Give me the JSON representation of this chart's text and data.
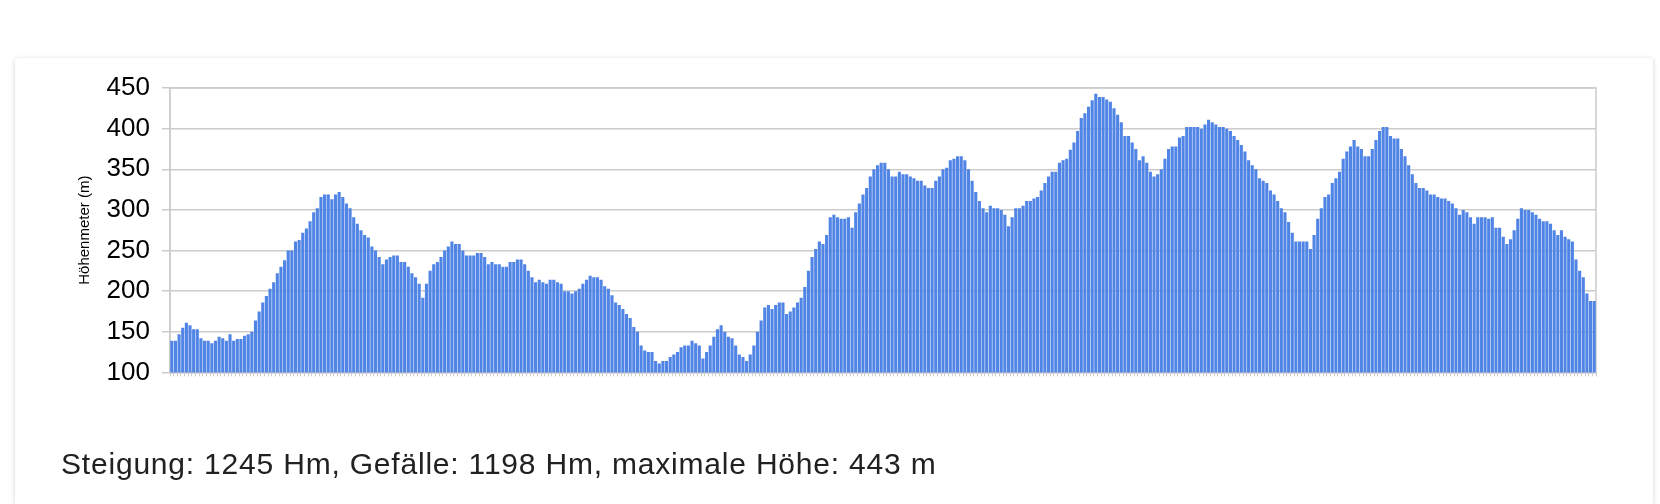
{
  "chart_data": {
    "type": "bar",
    "ylabel": "Höhenmeter (m)",
    "color": "#5185e5",
    "ylim": [
      100,
      450
    ],
    "yticks": [
      100,
      150,
      200,
      250,
      300,
      350,
      400,
      450
    ],
    "grid": "y",
    "tick_labels": "y",
    "annotations": [
      "Steigung: 1245 Hm, Gefälle: 1198 Hm, maximale Höhe: 443 m"
    ],
    "categories": [
      null,
      null,
      null,
      null,
      null,
      null,
      null,
      null,
      null,
      null,
      null,
      null,
      null,
      null,
      null,
      null,
      null,
      null,
      null,
      null,
      null,
      null,
      null,
      null,
      null,
      null,
      null,
      null,
      null,
      null,
      null,
      null,
      null,
      null,
      null,
      null,
      null,
      null,
      null,
      null,
      null,
      null,
      null,
      null,
      null,
      null,
      null,
      null,
      null,
      null,
      null,
      null,
      null,
      null,
      null,
      null,
      null,
      null,
      null,
      null,
      null,
      null,
      null,
      null,
      null,
      null,
      null,
      null,
      null,
      null,
      null,
      null,
      null,
      null,
      null,
      null,
      null,
      null,
      null,
      null,
      null,
      null,
      null,
      null,
      null,
      null,
      null,
      null,
      null,
      null,
      null,
      null,
      null,
      null,
      null,
      null,
      null,
      null,
      null,
      null,
      null,
      null,
      null,
      null,
      null,
      null,
      null,
      null,
      null,
      null,
      null,
      null,
      null,
      null,
      null,
      null,
      null,
      null,
      null,
      null,
      null,
      null,
      null,
      null,
      null,
      null,
      null,
      null,
      null,
      null,
      null,
      null,
      null,
      null,
      null,
      null,
      null,
      null,
      null,
      null,
      null,
      null,
      null,
      null,
      null,
      null,
      null,
      null,
      null,
      null,
      null,
      null,
      null,
      null,
      null,
      null,
      null,
      null,
      null,
      null,
      null,
      null,
      null,
      null,
      null,
      null,
      null,
      null,
      null,
      null,
      null,
      null,
      null,
      null,
      null,
      null,
      null,
      null,
      null,
      null,
      null,
      null,
      null,
      null,
      null,
      null,
      null,
      null,
      null,
      null,
      null,
      null,
      null,
      null,
      null,
      null,
      null,
      null,
      null,
      null,
      null,
      null,
      null,
      null,
      null,
      null,
      null,
      null,
      null,
      null,
      null,
      null,
      null,
      null,
      null,
      null,
      null,
      null,
      null,
      null,
      null,
      null,
      null,
      null,
      null,
      null,
      null,
      null,
      null,
      null,
      null,
      null,
      null,
      null,
      null,
      null,
      null,
      null,
      null,
      null,
      null,
      null,
      null,
      null,
      null,
      null,
      null,
      null,
      null,
      null,
      null,
      null,
      null,
      null,
      null,
      null,
      null,
      null,
      null,
      null,
      null,
      null,
      null,
      null,
      null,
      null,
      null,
      null,
      null,
      null,
      null,
      null,
      null,
      null,
      null,
      null,
      null,
      null,
      null,
      null,
      null,
      null,
      null,
      null,
      null,
      null,
      null,
      null,
      null,
      null,
      null,
      null,
      null,
      null,
      null,
      null,
      null,
      null,
      null,
      null,
      null,
      null,
      null,
      null,
      null,
      null,
      null,
      null,
      null,
      null,
      null,
      null,
      null,
      null,
      null,
      null,
      null,
      null,
      null,
      null,
      null,
      null,
      null,
      null,
      null,
      null,
      null,
      null,
      null,
      null,
      null,
      null,
      null,
      null,
      null,
      null,
      null,
      null,
      null,
      null,
      null,
      null,
      null,
      null,
      null,
      null,
      null,
      null,
      null,
      null,
      null,
      null,
      null,
      null,
      null,
      null,
      null,
      null,
      null,
      null,
      null,
      null,
      null,
      null,
      null,
      null,
      null,
      null,
      null,
      null,
      null,
      null,
      null,
      null,
      null,
      null,
      null,
      null,
      null,
      null,
      null,
      null,
      null,
      null,
      null,
      null,
      null,
      null,
      null,
      null,
      null,
      null
    ],
    "values": [
      139,
      139,
      147,
      155,
      161,
      158,
      153,
      153,
      142,
      139,
      139,
      136,
      139,
      144,
      142,
      139,
      147,
      139,
      141,
      141,
      145,
      147,
      150,
      164,
      175,
      186,
      194,
      203,
      211,
      222,
      230,
      238,
      250,
      250,
      261,
      263,
      272,
      277,
      286,
      297,
      302,
      316,
      319,
      319,
      313,
      319,
      322,
      316,
      308,
      302,
      291,
      283,
      275,
      269,
      266,
      255,
      250,
      242,
      233,
      239,
      242,
      244,
      244,
      236,
      236,
      230,
      222,
      217,
      209,
      192,
      209,
      225,
      233,
      236,
      242,
      250,
      255,
      261,
      258,
      258,
      250,
      244,
      244,
      244,
      247,
      247,
      242,
      233,
      236,
      233,
      233,
      230,
      230,
      236,
      236,
      239,
      239,
      233,
      225,
      217,
      211,
      214,
      211,
      209,
      214,
      214,
      211,
      209,
      200,
      200,
      197,
      200,
      203,
      209,
      214,
      219,
      217,
      217,
      214,
      206,
      203,
      195,
      186,
      183,
      178,
      172,
      167,
      156,
      150,
      133,
      127,
      125,
      125,
      114,
      111,
      114,
      114,
      119,
      122,
      125,
      131,
      133,
      133,
      139,
      136,
      133,
      117,
      125,
      133,
      144,
      153,
      158,
      150,
      144,
      142,
      133,
      122,
      119,
      114,
      122,
      133,
      150,
      164,
      180,
      183,
      178,
      183,
      186,
      186,
      172,
      175,
      180,
      186,
      192,
      205,
      225,
      242,
      252,
      261,
      258,
      269,
      291,
      294,
      291,
      289,
      289,
      291,
      278,
      297,
      308,
      319,
      327,
      341,
      350,
      355,
      358,
      358,
      350,
      341,
      341,
      347,
      344,
      344,
      341,
      339,
      336,
      336,
      330,
      327,
      327,
      336,
      341,
      350,
      352,
      361,
      363,
      366,
      366,
      361,
      350,
      336,
      322,
      311,
      302,
      297,
      305,
      302,
      302,
      300,
      294,
      280,
      291,
      302,
      302,
      305,
      311,
      311,
      314,
      316,
      324,
      333,
      341,
      347,
      347,
      358,
      361,
      363,
      374,
      383,
      397,
      413,
      419,
      427,
      435,
      443,
      439,
      439,
      436,
      433,
      425,
      417,
      408,
      391,
      391,
      383,
      375,
      361,
      366,
      358,
      347,
      341,
      344,
      350,
      363,
      375,
      378,
      378,
      389,
      391,
      402,
      402,
      402,
      402,
      400,
      405,
      411,
      408,
      405,
      402,
      402,
      400,
      397,
      391,
      386,
      380,
      372,
      361,
      355,
      350,
      339,
      336,
      333,
      324,
      319,
      311,
      302,
      297,
      285,
      272,
      261,
      261,
      261,
      261,
      252,
      269,
      289,
      302,
      316,
      319,
      333,
      339,
      347,
      363,
      372,
      378,
      386,
      378,
      375,
      366,
      366,
      375,
      386,
      397,
      402,
      402,
      391,
      388,
      388,
      375,
      366,
      355,
      344,
      333,
      327,
      327,
      324,
      319,
      319,
      316,
      314,
      314,
      311,
      308,
      302,
      294,
      300,
      297,
      291,
      283,
      291,
      291,
      291,
      289,
      291,
      278,
      278,
      267,
      258,
      264,
      275,
      289,
      302,
      300,
      300,
      297,
      294,
      289,
      286,
      286,
      283,
      275,
      269,
      275,
      267,
      264,
      261,
      239,
      225,
      217,
      197,
      188,
      188
    ]
  }
}
